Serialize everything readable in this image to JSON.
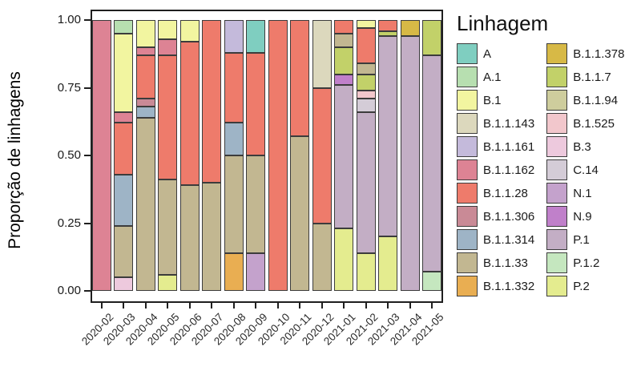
{
  "y_axis": {
    "label": "Proporção de linhagens",
    "ticks": [
      {
        "label": "1.00",
        "value": 1.0
      },
      {
        "label": "0.75",
        "value": 0.75
      },
      {
        "label": "0.50",
        "value": 0.5
      },
      {
        "label": "0.25",
        "value": 0.25
      },
      {
        "label": "0.00",
        "value": 0.0
      }
    ]
  },
  "legend": {
    "title": "Linhagem",
    "columns": [
      [
        "A",
        "A.1",
        "B.1",
        "B.1.1.143",
        "B.1.1.161",
        "B.1.1.162",
        "B.1.1.28",
        "B.1.1.306",
        "B.1.1.314",
        "B.1.1.33",
        "B.1.1.332"
      ],
      [
        "B.1.1.378",
        "B.1.1.7",
        "B.1.1.94",
        "B.1.525",
        "B.3",
        "C.14",
        "N.1",
        "N.9",
        "P.1",
        "P.1.2",
        "P.2"
      ]
    ]
  },
  "chart_data": {
    "type": "bar",
    "subtype": "stacked-proportion",
    "title": "",
    "xlabel": "",
    "ylabel": "Proporção de linhagens",
    "ylim": [
      0,
      1
    ],
    "grid": false,
    "legend_position": "right",
    "legend_title": "Linhagem",
    "categories": [
      "2020-02",
      "2020-03",
      "2020-04",
      "2020-05",
      "2020-06",
      "2020-07",
      "2020-08",
      "2020-09",
      "2020-10",
      "2020-11",
      "2020-12",
      "2021-01",
      "2021-02",
      "2021-03",
      "2021-04",
      "2021-05"
    ],
    "lineage_colors": {
      "A": "#7fcec0",
      "A.1": "#b7dfb0",
      "B.1": "#f2f5a0",
      "B.1.1.143": "#dcd8bd",
      "B.1.1.161": "#c4badb",
      "B.1.1.162": "#dd8394",
      "B.1.1.28": "#ee7b6b",
      "B.1.1.306": "#c98a96",
      "B.1.1.314": "#9eb4c6",
      "B.1.1.33": "#c2b791",
      "B.1.1.332": "#e9ae52",
      "B.1.1.378": "#d7b946",
      "B.1.1.7": "#c2d169",
      "B.1.1.94": "#cecd9d",
      "B.1.525": "#f2c7cc",
      "B.3": "#edc9dd",
      "C.14": "#d4ccd7",
      "N.1": "#c4a2cc",
      "N.9": "#c080ca",
      "P.1": "#c3aec5",
      "P.1.2": "#c5e7bf",
      "P.2": "#e4ec8f"
    },
    "bars": [
      {
        "month": "2020-02",
        "segments": [
          {
            "lineage": "B.1.1.162",
            "value": 1.0
          }
        ]
      },
      {
        "month": "2020-03",
        "segments": [
          {
            "lineage": "A.1",
            "value": 0.05
          },
          {
            "lineage": "B.1",
            "value": 0.29
          },
          {
            "lineage": "B.1.1.162",
            "value": 0.04
          },
          {
            "lineage": "B.1.1.28",
            "value": 0.19
          },
          {
            "lineage": "B.1.1.314",
            "value": 0.19
          },
          {
            "lineage": "B.1.1.33",
            "value": 0.19
          },
          {
            "lineage": "B.3",
            "value": 0.05
          }
        ]
      },
      {
        "month": "2020-04",
        "segments": [
          {
            "lineage": "B.1",
            "value": 0.1
          },
          {
            "lineage": "B.1.1.162",
            "value": 0.03
          },
          {
            "lineage": "B.1.1.28",
            "value": 0.16
          },
          {
            "lineage": "B.1.1.306",
            "value": 0.03
          },
          {
            "lineage": "B.1.1.314",
            "value": 0.04
          },
          {
            "lineage": "B.1.1.33",
            "value": 0.64
          }
        ]
      },
      {
        "month": "2020-05",
        "segments": [
          {
            "lineage": "B.1",
            "value": 0.07
          },
          {
            "lineage": "B.1.1.162",
            "value": 0.06
          },
          {
            "lineage": "B.1.1.28",
            "value": 0.46
          },
          {
            "lineage": "B.1.1.33",
            "value": 0.35
          },
          {
            "lineage": "P.2",
            "value": 0.06
          }
        ]
      },
      {
        "month": "2020-06",
        "segments": [
          {
            "lineage": "B.1",
            "value": 0.08
          },
          {
            "lineage": "B.1.1.28",
            "value": 0.53
          },
          {
            "lineage": "B.1.1.33",
            "value": 0.39
          }
        ]
      },
      {
        "month": "2020-07",
        "segments": [
          {
            "lineage": "B.1.1.28",
            "value": 0.6
          },
          {
            "lineage": "B.1.1.33",
            "value": 0.4
          }
        ]
      },
      {
        "month": "2020-08",
        "segments": [
          {
            "lineage": "B.1.1.161",
            "value": 0.12
          },
          {
            "lineage": "B.1.1.28",
            "value": 0.26
          },
          {
            "lineage": "B.1.1.314",
            "value": 0.12
          },
          {
            "lineage": "B.1.1.33",
            "value": 0.36
          },
          {
            "lineage": "B.1.1.332",
            "value": 0.14
          }
        ]
      },
      {
        "month": "2020-09",
        "segments": [
          {
            "lineage": "A",
            "value": 0.12
          },
          {
            "lineage": "B.1.1.28",
            "value": 0.38
          },
          {
            "lineage": "B.1.1.33",
            "value": 0.36
          },
          {
            "lineage": "N.1",
            "value": 0.14
          }
        ]
      },
      {
        "month": "2020-10",
        "segments": [
          {
            "lineage": "B.1.1.28",
            "value": 1.0
          }
        ]
      },
      {
        "month": "2020-11",
        "segments": [
          {
            "lineage": "B.1.1.28",
            "value": 0.43
          },
          {
            "lineage": "B.1.1.33",
            "value": 0.57
          }
        ]
      },
      {
        "month": "2020-12",
        "segments": [
          {
            "lineage": "B.1.1.143",
            "value": 0.25
          },
          {
            "lineage": "B.1.1.28",
            "value": 0.5
          },
          {
            "lineage": "B.1.1.33",
            "value": 0.25
          }
        ]
      },
      {
        "month": "2021-01",
        "segments": [
          {
            "lineage": "B.1.1.28",
            "value": 0.05
          },
          {
            "lineage": "B.1.1.33",
            "value": 0.05
          },
          {
            "lineage": "B.1.1.7",
            "value": 0.1
          },
          {
            "lineage": "N.9",
            "value": 0.04
          },
          {
            "lineage": "P.1",
            "value": 0.53
          },
          {
            "lineage": "P.2",
            "value": 0.23
          }
        ]
      },
      {
        "month": "2021-02",
        "segments": [
          {
            "lineage": "B.1",
            "value": 0.03
          },
          {
            "lineage": "B.1.1.28",
            "value": 0.13
          },
          {
            "lineage": "B.1.1.33",
            "value": 0.04
          },
          {
            "lineage": "B.1.1.7",
            "value": 0.06
          },
          {
            "lineage": "B.1.525",
            "value": 0.03
          },
          {
            "lineage": "C.14",
            "value": 0.05
          },
          {
            "lineage": "P.1",
            "value": 0.52
          },
          {
            "lineage": "P.2",
            "value": 0.14
          }
        ]
      },
      {
        "month": "2021-03",
        "segments": [
          {
            "lineage": "B.1.1.28",
            "value": 0.04
          },
          {
            "lineage": "B.1.1.7",
            "value": 0.02
          },
          {
            "lineage": "P.1",
            "value": 0.74
          },
          {
            "lineage": "P.2",
            "value": 0.2
          }
        ]
      },
      {
        "month": "2021-04",
        "segments": [
          {
            "lineage": "B.1.1.378",
            "value": 0.06
          },
          {
            "lineage": "P.1",
            "value": 0.94
          }
        ]
      },
      {
        "month": "2021-05",
        "segments": [
          {
            "lineage": "B.1.1.7",
            "value": 0.13
          },
          {
            "lineage": "P.1",
            "value": 0.8
          },
          {
            "lineage": "P.1.2",
            "value": 0.07
          }
        ]
      }
    ]
  }
}
